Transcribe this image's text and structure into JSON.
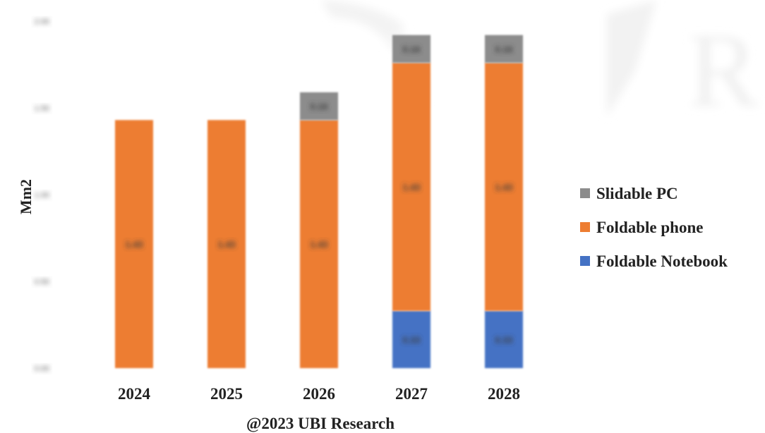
{
  "chart_data": {
    "type": "bar",
    "stacked": true,
    "categories": [
      "2024",
      "2025",
      "2026",
      "2027",
      "2028"
    ],
    "series": [
      {
        "name": "Foldable Notebook",
        "color": "#4472c4",
        "values": [
          0,
          0,
          0,
          0.33,
          0.33
        ]
      },
      {
        "name": "Foldable phone",
        "color": "#ed7d31",
        "values": [
          1.43,
          1.43,
          1.43,
          1.43,
          1.43
        ]
      },
      {
        "name": "Slidable PC",
        "color": "#8c8c8c",
        "values": [
          0,
          0,
          0.16,
          0.16,
          0.16
        ]
      }
    ],
    "ylabel": "Mm2",
    "xlabel": "@2023 UBI Research",
    "ylim": [
      0,
      2.0
    ],
    "yticks": [
      0,
      0.5,
      1.0,
      1.5,
      2.0
    ],
    "ytick_labels": [
      "0.00",
      "0.50",
      "1.00",
      "1.50",
      "2.00"
    ],
    "legend_order": [
      "Slidable PC",
      "Foldable phone",
      "Foldable Notebook"
    ],
    "legend_position": "right",
    "grid": false
  },
  "watermark": {
    "text": "R"
  }
}
